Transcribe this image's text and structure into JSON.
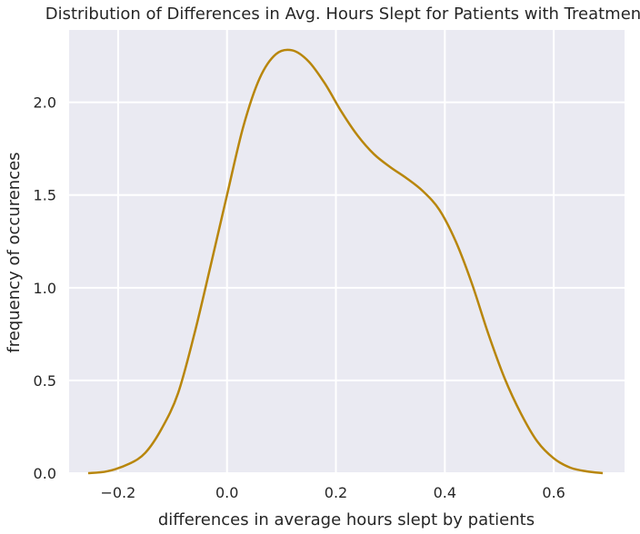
{
  "chart_data": {
    "type": "line",
    "title": "Distribution of Differences in Avg. Hours Slept for Patients with Treatment",
    "xlabel": "differences in average hours slept by patients",
    "ylabel": "frequency of occurences",
    "xlim": [
      -0.29,
      0.73
    ],
    "ylim": [
      0.0,
      2.39
    ],
    "xticks": [
      -0.2,
      0.0,
      0.2,
      0.4,
      0.6
    ],
    "xtick_labels": [
      "−0.2",
      "0.0",
      "0.2",
      "0.4",
      "0.6"
    ],
    "yticks": [
      0.0,
      0.5,
      1.0,
      1.5,
      2.0
    ],
    "ytick_labels": [
      "0.0",
      "0.5",
      "1.0",
      "1.5",
      "2.0"
    ],
    "grid": true,
    "background": "#eaeaf2",
    "series": [
      {
        "color": "#b8860b",
        "x": [
          -0.255,
          -0.22,
          -0.18,
          -0.15,
          -0.12,
          -0.09,
          -0.06,
          -0.03,
          0.0,
          0.03,
          0.06,
          0.09,
          0.12,
          0.15,
          0.18,
          0.21,
          0.24,
          0.27,
          0.3,
          0.33,
          0.36,
          0.39,
          0.42,
          0.45,
          0.48,
          0.51,
          0.54,
          0.57,
          0.6,
          0.63,
          0.66,
          0.69
        ],
        "y": [
          0.0,
          0.01,
          0.05,
          0.11,
          0.24,
          0.43,
          0.75,
          1.12,
          1.5,
          1.87,
          2.13,
          2.26,
          2.28,
          2.22,
          2.1,
          1.95,
          1.82,
          1.72,
          1.65,
          1.59,
          1.52,
          1.42,
          1.25,
          1.02,
          0.75,
          0.51,
          0.32,
          0.17,
          0.08,
          0.03,
          0.01,
          0.0
        ]
      }
    ]
  }
}
